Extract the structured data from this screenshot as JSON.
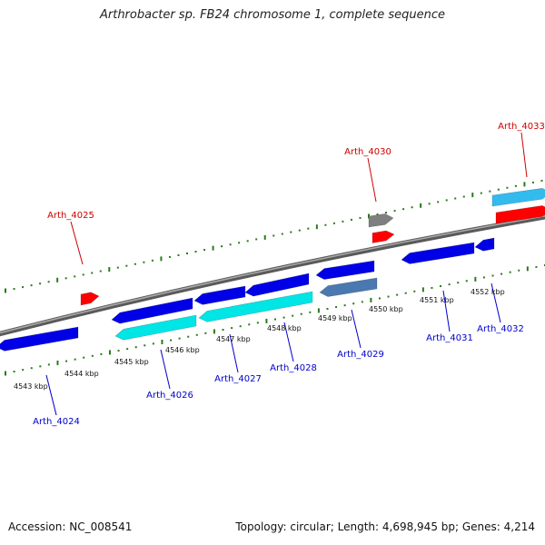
{
  "title": "Arthrobacter sp. FB24 chromosome 1, complete sequence",
  "footer": {
    "accession": "Accession: NC_008541",
    "summary": "Topology: circular; Length: 4,698,945 bp; Genes: 4,214"
  },
  "colors": {
    "backbone": "#808080",
    "tick": "#2a7a1a",
    "forward_gene": "#ff0000",
    "forward_gray": "#7f7f7f",
    "reverse_gene": "#0000e6",
    "reverse_cyan": "#00e5e5",
    "reverse_skyblue": "#33bbee",
    "reverse_steel": "#4a78b0",
    "label_forward": "#cc0000",
    "label_reverse": "#0000cc"
  },
  "scale_labels": [
    "4543 kbp",
    "4544 kbp",
    "4545 kbp",
    "4546 kbp",
    "4547 kbp",
    "4548 kbp",
    "4549 kbp",
    "4550 kbp",
    "4551 kbp",
    "4552 kbp"
  ],
  "gene_labels": [
    {
      "id": "Arth_4024",
      "strand": "reverse"
    },
    {
      "id": "Arth_4025",
      "strand": "forward"
    },
    {
      "id": "Arth_4026",
      "strand": "reverse"
    },
    {
      "id": "Arth_4027",
      "strand": "reverse"
    },
    {
      "id": "Arth_4028",
      "strand": "reverse"
    },
    {
      "id": "Arth_4029",
      "strand": "reverse"
    },
    {
      "id": "Arth_4030",
      "strand": "forward"
    },
    {
      "id": "Arth_4031",
      "strand": "reverse"
    },
    {
      "id": "Arth_4032",
      "strand": "reverse"
    },
    {
      "id": "Arth_4033",
      "strand": "forward"
    }
  ]
}
